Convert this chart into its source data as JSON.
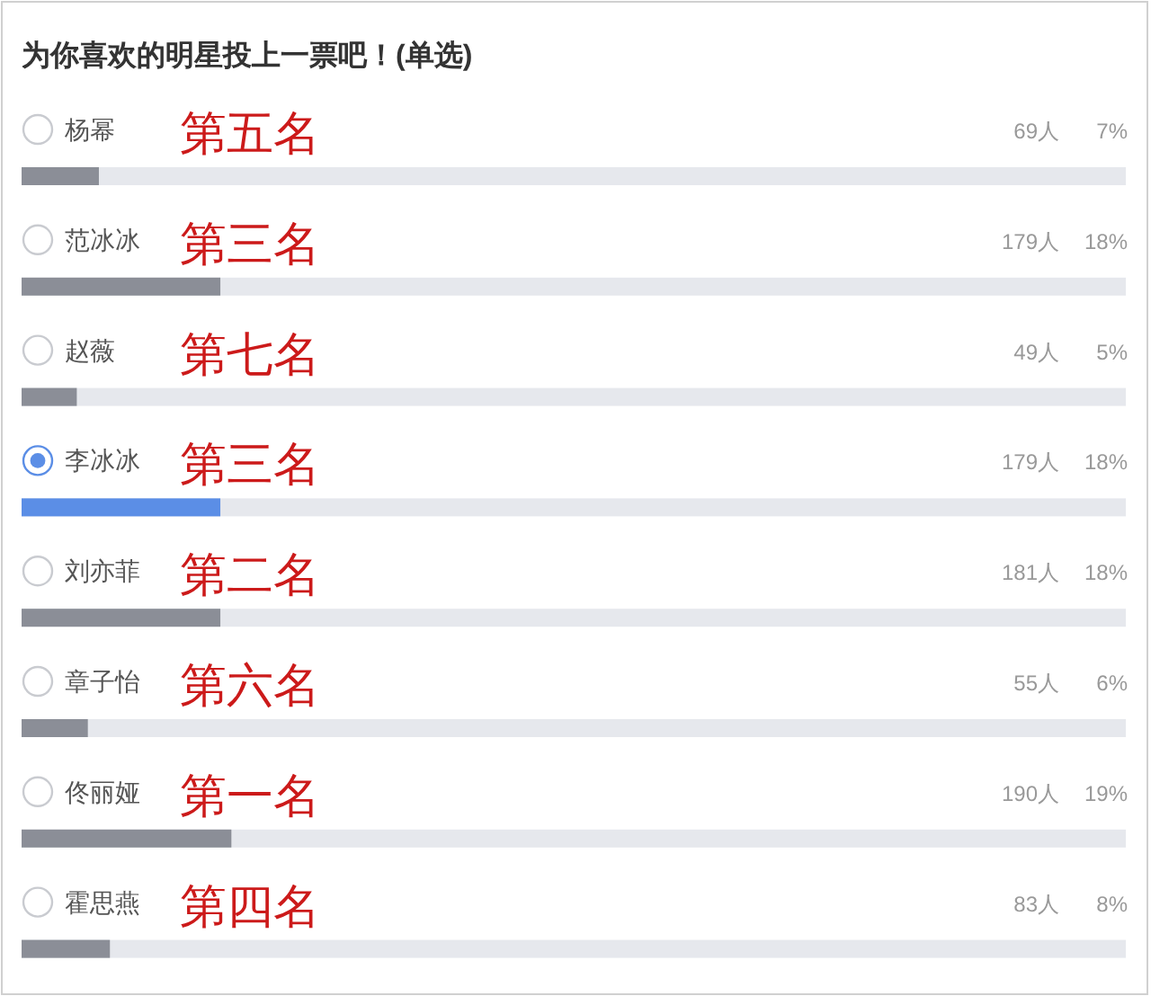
{
  "chart_data": {
    "type": "bar",
    "orientation": "horizontal",
    "title": "为你喜欢的明星投上一票吧！(单选)",
    "categories": [
      "杨幂",
      "范冰冰",
      "赵薇",
      "李冰冰",
      "刘亦菲",
      "章子怡",
      "佟丽娅",
      "霍思燕"
    ],
    "values": [
      7,
      18,
      5,
      18,
      18,
      6,
      19,
      8
    ],
    "colors": [
      "#8b8e97",
      "#8b8e97",
      "#8b8e97",
      "#5b8ee6",
      "#8b8e97",
      "#8b8e97",
      "#8b8e97",
      "#8b8e97"
    ],
    "xlim": [
      0,
      100
    ],
    "tick_labels": "y",
    "value_labels": [
      "7%",
      "18%",
      "5%",
      "18%",
      "18%",
      "6%",
      "19%",
      "8%"
    ],
    "annotations": [
      "第五名",
      "69人",
      "第三名",
      "179人",
      "第七名",
      "49人",
      "第三名",
      "179人",
      "第二名",
      "181人",
      "第六名",
      "55人",
      "第一名",
      "190人",
      "第四名",
      "83人"
    ]
  }
}
